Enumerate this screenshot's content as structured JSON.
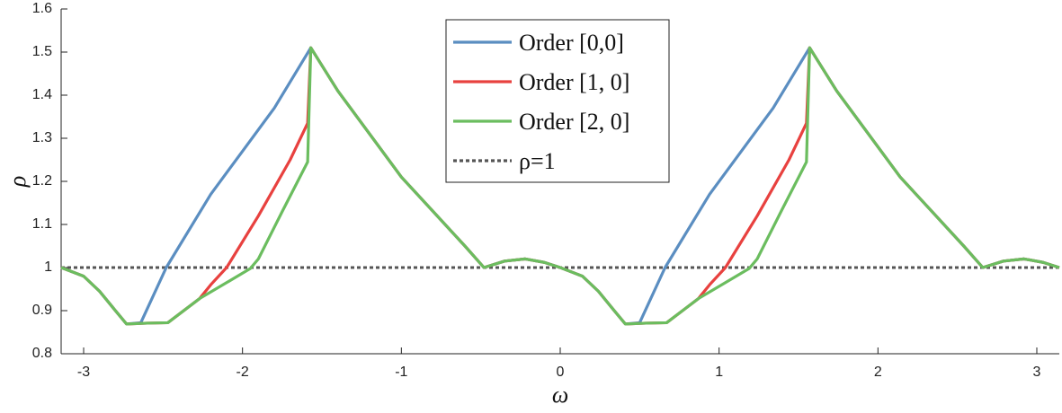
{
  "chart_data": {
    "type": "line",
    "xlabel": "ω",
    "ylabel": "ρ",
    "xlim": [
      -3.1416,
      3.1416
    ],
    "ylim": [
      0.8,
      1.6
    ],
    "xticks": [
      -3,
      -2,
      -1,
      0,
      1,
      2,
      3
    ],
    "yticks": [
      0.8,
      0.9,
      1,
      1.1,
      1.2,
      1.3,
      1.4,
      1.5,
      1.6
    ],
    "legend": "north",
    "series": [
      {
        "name": "Order [0,0]",
        "color": "#5b8ec1",
        "style": "solid",
        "x": [
          -3.1416,
          -3.0,
          -2.9,
          -2.8,
          -2.73,
          -2.64,
          -2.48,
          -2.2,
          -2.0,
          -1.8,
          -1.57,
          -1.4,
          -1.2,
          -1.0,
          -0.8,
          -0.6,
          -0.48,
          -0.35,
          -0.22,
          -0.1,
          0,
          0.14,
          0.24,
          0.34,
          0.41,
          0.5,
          0.66,
          0.94,
          1.14,
          1.34,
          1.57,
          1.74,
          1.94,
          2.14,
          2.34,
          2.54,
          2.66,
          2.79,
          2.92,
          3.04,
          3.1416
        ],
        "values": [
          1.0,
          0.98,
          0.945,
          0.9,
          0.869,
          0.872,
          1.0,
          1.17,
          1.27,
          1.37,
          1.51,
          1.41,
          1.31,
          1.21,
          1.13,
          1.05,
          1.0,
          1.015,
          1.02,
          1.012,
          1.0,
          0.98,
          0.945,
          0.9,
          0.869,
          0.872,
          1.0,
          1.17,
          1.27,
          1.37,
          1.51,
          1.41,
          1.31,
          1.21,
          1.13,
          1.05,
          1.0,
          1.015,
          1.02,
          1.012,
          1.0
        ]
      },
      {
        "name": "Order [1, 0]",
        "color": "#e8413f",
        "style": "solid",
        "x": [
          -3.1416,
          -3.0,
          -2.9,
          -2.8,
          -2.73,
          -2.6,
          -2.47,
          -2.27,
          -2.2,
          -2.1,
          -1.9,
          -1.7,
          -1.59,
          -1.57,
          -1.4,
          -1.2,
          -1.0,
          -0.8,
          -0.6,
          -0.48,
          -0.35,
          -0.22,
          -0.1,
          0,
          0.14,
          0.24,
          0.34,
          0.41,
          0.54,
          0.67,
          0.87,
          0.94,
          1.04,
          1.24,
          1.44,
          1.55,
          1.57,
          1.74,
          1.94,
          2.14,
          2.34,
          2.54,
          2.66,
          2.79,
          2.92,
          3.04,
          3.1416
        ],
        "values": [
          1.0,
          0.98,
          0.945,
          0.9,
          0.869,
          0.871,
          0.872,
          0.928,
          0.96,
          1.0,
          1.12,
          1.25,
          1.335,
          1.51,
          1.41,
          1.31,
          1.21,
          1.13,
          1.05,
          1.0,
          1.015,
          1.02,
          1.012,
          1.0,
          0.98,
          0.945,
          0.9,
          0.869,
          0.871,
          0.872,
          0.928,
          0.96,
          1.0,
          1.12,
          1.25,
          1.335,
          1.51,
          1.41,
          1.31,
          1.21,
          1.13,
          1.05,
          1.0,
          1.015,
          1.02,
          1.012,
          1.0
        ]
      },
      {
        "name": "Order [2, 0]",
        "color": "#6bbd5f",
        "style": "solid",
        "x": [
          -3.1416,
          -3.0,
          -2.9,
          -2.8,
          -2.73,
          -2.6,
          -2.47,
          -2.27,
          -2.1,
          -1.95,
          -1.9,
          -1.75,
          -1.59,
          -1.57,
          -1.4,
          -1.2,
          -1.0,
          -0.8,
          -0.6,
          -0.48,
          -0.35,
          -0.22,
          -0.1,
          0,
          0.14,
          0.24,
          0.34,
          0.41,
          0.54,
          0.67,
          0.87,
          1.04,
          1.19,
          1.24,
          1.39,
          1.55,
          1.57,
          1.74,
          1.94,
          2.14,
          2.34,
          2.54,
          2.66,
          2.79,
          2.92,
          3.04,
          3.1416
        ],
        "values": [
          1.0,
          0.98,
          0.945,
          0.9,
          0.869,
          0.871,
          0.872,
          0.928,
          0.965,
          0.998,
          1.02,
          1.13,
          1.245,
          1.51,
          1.41,
          1.31,
          1.21,
          1.13,
          1.05,
          1.0,
          1.015,
          1.02,
          1.012,
          1.0,
          0.98,
          0.945,
          0.9,
          0.869,
          0.871,
          0.872,
          0.928,
          0.965,
          0.998,
          1.02,
          1.13,
          1.245,
          1.51,
          1.41,
          1.31,
          1.21,
          1.13,
          1.05,
          1.0,
          1.015,
          1.02,
          1.012,
          1.0
        ]
      },
      {
        "name": "ρ=1",
        "color": "#555555",
        "style": "dotted",
        "x": [
          -3.1416,
          3.1416
        ],
        "values": [
          1,
          1
        ]
      }
    ]
  }
}
